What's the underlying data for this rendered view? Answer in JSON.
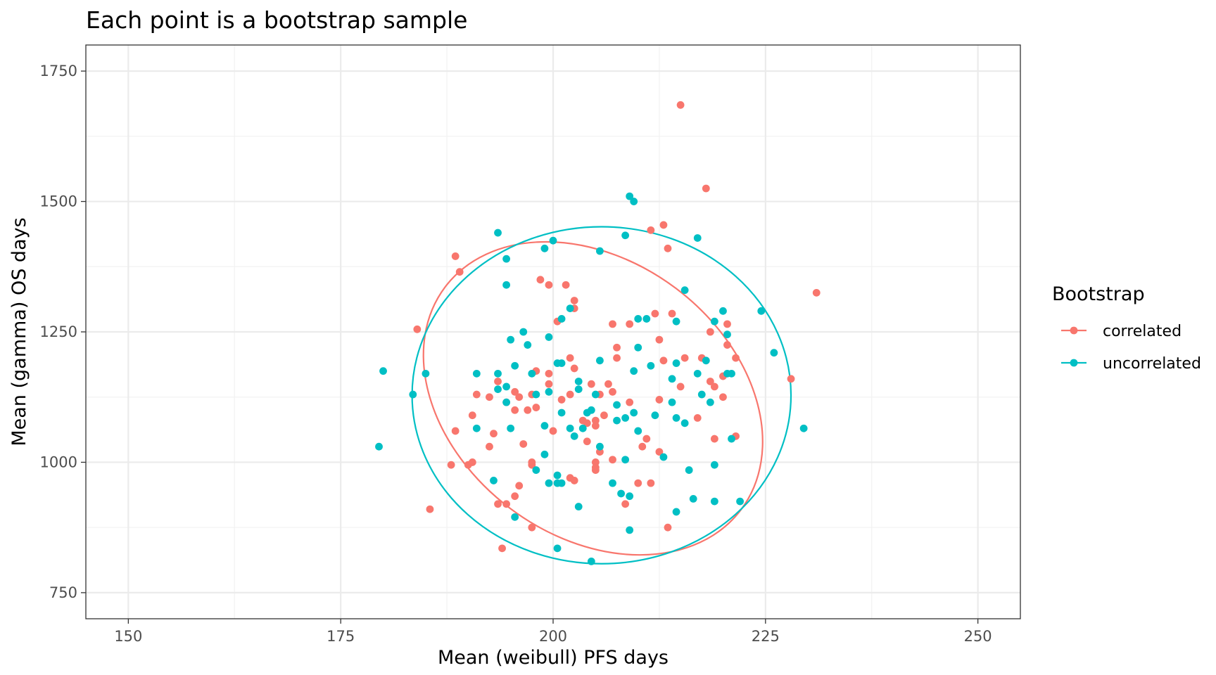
{
  "chart_data": {
    "type": "scatter",
    "title": "Each point is a bootstrap sample",
    "xlabel": "Mean (weibull) PFS days",
    "ylabel": "Mean (gamma) OS days",
    "xlim": [
      145,
      255
    ],
    "ylim": [
      700,
      1800
    ],
    "x_ticks": [
      "150",
      "175",
      "200",
      "225",
      "250"
    ],
    "y_ticks": [
      "750",
      "1000",
      "1250",
      "1500",
      "1750"
    ],
    "grid": true,
    "legend": {
      "title": "Bootstrap",
      "position": "right",
      "entries": [
        "correlated",
        "uncorrelated"
      ]
    },
    "series": [
      {
        "name": "correlated",
        "color": "#F8766D",
        "points": [
          [
            215.0,
            1685
          ],
          [
            218.0,
            1525
          ],
          [
            213.0,
            1455
          ],
          [
            211.5,
            1445
          ],
          [
            213.5,
            1410
          ],
          [
            231.0,
            1325
          ],
          [
            188.5,
            1395
          ],
          [
            189.0,
            1365
          ],
          [
            198.5,
            1350
          ],
          [
            201.5,
            1340
          ],
          [
            199.5,
            1340
          ],
          [
            202.5,
            1310
          ],
          [
            202.5,
            1295
          ],
          [
            184.0,
            1255
          ],
          [
            200.5,
            1270
          ],
          [
            209.0,
            1265
          ],
          [
            207.0,
            1265
          ],
          [
            212.0,
            1285
          ],
          [
            214.0,
            1285
          ],
          [
            220.5,
            1265
          ],
          [
            218.5,
            1250
          ],
          [
            212.5,
            1235
          ],
          [
            220.5,
            1225
          ],
          [
            207.5,
            1220
          ],
          [
            215.5,
            1200
          ],
          [
            217.5,
            1200
          ],
          [
            221.5,
            1200
          ],
          [
            207.5,
            1200
          ],
          [
            213.0,
            1195
          ],
          [
            202.0,
            1200
          ],
          [
            202.5,
            1180
          ],
          [
            198.0,
            1175
          ],
          [
            199.5,
            1170
          ],
          [
            220.0,
            1165
          ],
          [
            193.5,
            1155
          ],
          [
            195.5,
            1135
          ],
          [
            197.5,
            1130
          ],
          [
            204.5,
            1150
          ],
          [
            206.5,
            1150
          ],
          [
            215.0,
            1145
          ],
          [
            219.0,
            1145
          ],
          [
            218.5,
            1155
          ],
          [
            228.0,
            1160
          ],
          [
            199.5,
            1150
          ],
          [
            191.0,
            1130
          ],
          [
            192.5,
            1125
          ],
          [
            196.0,
            1125
          ],
          [
            194.5,
            1115
          ],
          [
            195.5,
            1100
          ],
          [
            197.0,
            1100
          ],
          [
            198.0,
            1105
          ],
          [
            202.0,
            1130
          ],
          [
            205.5,
            1130
          ],
          [
            207.0,
            1135
          ],
          [
            209.0,
            1115
          ],
          [
            212.5,
            1120
          ],
          [
            220.0,
            1125
          ],
          [
            201.0,
            1120
          ],
          [
            190.5,
            1090
          ],
          [
            203.5,
            1080
          ],
          [
            205.0,
            1070
          ],
          [
            206.0,
            1090
          ],
          [
            204.0,
            1075
          ],
          [
            205.0,
            1080
          ],
          [
            217.0,
            1085
          ],
          [
            188.5,
            1060
          ],
          [
            192.5,
            1030
          ],
          [
            193.0,
            1055
          ],
          [
            196.5,
            1035
          ],
          [
            200.0,
            1060
          ],
          [
            204.0,
            1040
          ],
          [
            205.5,
            1020
          ],
          [
            207.0,
            1005
          ],
          [
            211.0,
            1045
          ],
          [
            210.5,
            1030
          ],
          [
            212.5,
            1020
          ],
          [
            219.0,
            1045
          ],
          [
            221.5,
            1050
          ],
          [
            188.0,
            995
          ],
          [
            190.0,
            995
          ],
          [
            190.5,
            1000
          ],
          [
            197.5,
            1000
          ],
          [
            197.5,
            995
          ],
          [
            202.0,
            970
          ],
          [
            202.5,
            965
          ],
          [
            205.0,
            1000
          ],
          [
            205.0,
            990
          ],
          [
            205.0,
            985
          ],
          [
            210.0,
            960
          ],
          [
            211.5,
            960
          ],
          [
            196.0,
            955
          ],
          [
            195.5,
            935
          ],
          [
            193.5,
            920
          ],
          [
            194.5,
            920
          ],
          [
            208.5,
            920
          ],
          [
            185.5,
            910
          ],
          [
            197.5,
            875
          ],
          [
            213.5,
            875
          ],
          [
            194.0,
            835
          ]
        ]
      },
      {
        "name": "uncorrelated",
        "color": "#00BFC4",
        "points": [
          [
            209.0,
            1510
          ],
          [
            209.5,
            1500
          ],
          [
            193.5,
            1440
          ],
          [
            200.0,
            1425
          ],
          [
            199.0,
            1410
          ],
          [
            208.5,
            1435
          ],
          [
            217.0,
            1430
          ],
          [
            194.5,
            1390
          ],
          [
            205.5,
            1405
          ],
          [
            194.5,
            1340
          ],
          [
            215.5,
            1330
          ],
          [
            224.5,
            1290
          ],
          [
            220.0,
            1290
          ],
          [
            202.0,
            1295
          ],
          [
            201.0,
            1275
          ],
          [
            210.0,
            1275
          ],
          [
            211.0,
            1275
          ],
          [
            214.5,
            1270
          ],
          [
            219.0,
            1270
          ],
          [
            220.5,
            1245
          ],
          [
            226.0,
            1210
          ],
          [
            196.5,
            1250
          ],
          [
            199.5,
            1240
          ],
          [
            197.0,
            1225
          ],
          [
            195.0,
            1235
          ],
          [
            210.0,
            1220
          ],
          [
            200.5,
            1190
          ],
          [
            201.0,
            1190
          ],
          [
            205.5,
            1195
          ],
          [
            214.5,
            1190
          ],
          [
            218.0,
            1195
          ],
          [
            211.5,
            1185
          ],
          [
            195.5,
            1185
          ],
          [
            209.5,
            1175
          ],
          [
            180.0,
            1175
          ],
          [
            185.0,
            1170
          ],
          [
            191.0,
            1170
          ],
          [
            193.5,
            1170
          ],
          [
            197.5,
            1170
          ],
          [
            220.5,
            1170
          ],
          [
            221.0,
            1170
          ],
          [
            217.0,
            1170
          ],
          [
            214.0,
            1160
          ],
          [
            203.0,
            1155
          ],
          [
            193.5,
            1140
          ],
          [
            194.5,
            1145
          ],
          [
            198.0,
            1130
          ],
          [
            199.5,
            1135
          ],
          [
            203.0,
            1140
          ],
          [
            205.0,
            1130
          ],
          [
            183.5,
            1130
          ],
          [
            214.0,
            1115
          ],
          [
            217.5,
            1130
          ],
          [
            218.5,
            1115
          ],
          [
            194.5,
            1115
          ],
          [
            207.5,
            1110
          ],
          [
            201.0,
            1095
          ],
          [
            204.0,
            1095
          ],
          [
            204.5,
            1100
          ],
          [
            209.5,
            1095
          ],
          [
            212.0,
            1090
          ],
          [
            208.5,
            1085
          ],
          [
            207.5,
            1080
          ],
          [
            210.0,
            1060
          ],
          [
            214.5,
            1085
          ],
          [
            215.5,
            1075
          ],
          [
            199.0,
            1070
          ],
          [
            191.0,
            1065
          ],
          [
            195.0,
            1065
          ],
          [
            202.0,
            1065
          ],
          [
            203.5,
            1065
          ],
          [
            202.5,
            1050
          ],
          [
            229.5,
            1065
          ],
          [
            221.0,
            1045
          ],
          [
            179.5,
            1030
          ],
          [
            205.5,
            1030
          ],
          [
            213.0,
            1010
          ],
          [
            208.5,
            1005
          ],
          [
            199.0,
            1015
          ],
          [
            219.0,
            995
          ],
          [
            216.0,
            985
          ],
          [
            198.0,
            985
          ],
          [
            200.5,
            975
          ],
          [
            193.0,
            965
          ],
          [
            199.5,
            960
          ],
          [
            200.5,
            960
          ],
          [
            201.0,
            960
          ],
          [
            207.0,
            960
          ],
          [
            208.0,
            940
          ],
          [
            209.0,
            935
          ],
          [
            216.5,
            930
          ],
          [
            219.0,
            925
          ],
          [
            222.0,
            925
          ],
          [
            203.0,
            915
          ],
          [
            214.5,
            905
          ],
          [
            195.5,
            895
          ],
          [
            209.0,
            870
          ],
          [
            200.5,
            835
          ],
          [
            204.5,
            810
          ]
        ]
      }
    ],
    "ellipses": [
      {
        "series": "correlated",
        "color": "#F8766D",
        "center": [
          204.7,
          1122.5
        ],
        "rx": 21.8,
        "ry": 264,
        "tilt_deg": 37
      },
      {
        "series": "uncorrelated",
        "color": "#00BFC4",
        "center": [
          205.7,
          1128.5
        ],
        "rx": 22.3,
        "ry": 323,
        "tilt_deg": 0
      }
    ]
  }
}
